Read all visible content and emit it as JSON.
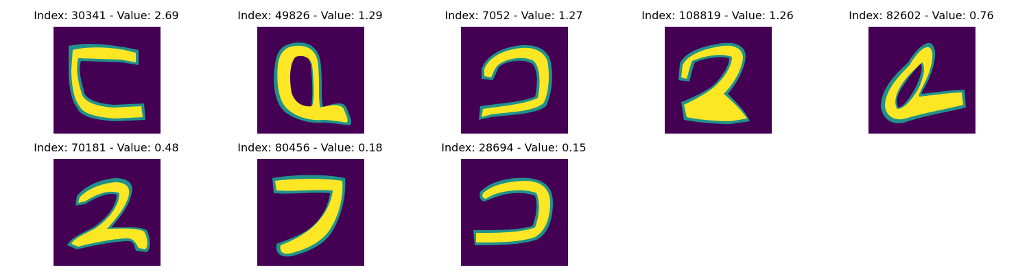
{
  "figure": {
    "colormap": "viridis",
    "background_color": "#440154",
    "foreground_color": "#fde725",
    "edge_color": "#21918c",
    "panels": [
      {
        "title": "Index: 30341 - Value: 2.69",
        "index": 30341,
        "value": 2.69,
        "glyph": "curved-c-shape"
      },
      {
        "title": "Index: 49826 - Value: 1.29",
        "index": 49826,
        "value": 1.29,
        "glyph": "looped-q-shape"
      },
      {
        "title": "Index: 7052 - Value: 1.27",
        "index": 7052,
        "value": 1.27,
        "glyph": "reversed-c-shape"
      },
      {
        "title": "Index: 108819 - Value: 1.26",
        "index": 108819,
        "value": 1.26,
        "glyph": "z-shape"
      },
      {
        "title": "Index: 82602 - Value: 0.76",
        "index": 82602,
        "value": 0.76,
        "glyph": "slanted-loop-shape"
      },
      {
        "title": "Index: 70181 - Value: 0.48",
        "index": 70181,
        "value": 0.48,
        "glyph": "two-shape"
      },
      {
        "title": "Index: 80456 - Value: 0.18",
        "index": 80456,
        "value": 0.18,
        "glyph": "seven-shape"
      },
      {
        "title": "Index: 28694 - Value: 0.15",
        "index": 28694,
        "value": 0.15,
        "glyph": "reversed-c-shape"
      }
    ]
  }
}
